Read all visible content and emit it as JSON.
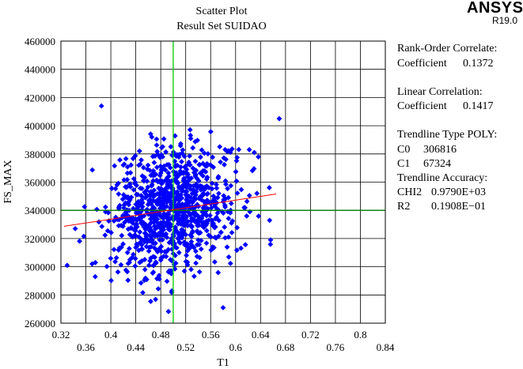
{
  "logo": {
    "name": "ANSYS",
    "version": "R19.0"
  },
  "stats": {
    "rank_title": "Rank-Order Correlate:",
    "rank_label": "Coefficient",
    "rank_value": "0.1372",
    "linear_title": "Linear Correlation:",
    "linear_label": "Coefficient",
    "linear_value": "0.1417",
    "trend_title": "Trendline Type POLY:",
    "c0_label": "C0",
    "c0_value": "306816",
    "c1_label": "C1",
    "c1_value": "67324",
    "accuracy_title": "Trendline Accuracy:",
    "chi2_label": "CHI2",
    "chi2_value": "0.9790E+03",
    "r2_label": "R2",
    "r2_value": "0.1908E−01"
  },
  "chart_data": {
    "type": "scatter",
    "title": "Scatter Plot",
    "subtitle": "Result Set SUIDAO",
    "xlabel": "T1",
    "ylabel": "FS_MAX",
    "xlim": [
      0.32,
      0.84
    ],
    "ylim": [
      260000,
      460000
    ],
    "x_ticks_upper": [
      "0.32",
      "0.4",
      "0.48",
      "0.56",
      "0.64",
      "0.72",
      "0.8"
    ],
    "x_ticks_lower": [
      "0.36",
      "0.44",
      "0.52",
      "0.6",
      "0.68",
      "0.76",
      "0.84"
    ],
    "y_ticks": [
      "260000",
      "280000",
      "300000",
      "320000",
      "340000",
      "360000",
      "380000",
      "400000",
      "420000",
      "440000",
      "460000"
    ],
    "grid": true,
    "marker_color": "#0000ff",
    "mean_lines": {
      "x": 0.5,
      "y": 340000,
      "x_color": "#00cc00",
      "y_color": "#008000"
    },
    "trendline": {
      "color": "#ff0000",
      "x_range": [
        0.325,
        0.665
      ],
      "c0": 306816,
      "c1": 67324
    },
    "series": [
      {
        "cluster": {
          "n": 1000,
          "x_mean": 0.5,
          "x_sd": 0.05,
          "y_mean": 340000,
          "y_sd": 22000,
          "seed": 7
        },
        "points": [
          [
            0.33,
            301000
          ],
          [
            0.343,
            327000
          ],
          [
            0.385,
            414000
          ],
          [
            0.67,
            405000
          ],
          [
            0.622,
            383000
          ],
          [
            0.63,
            381000
          ],
          [
            0.58,
            271000
          ],
          [
            0.37,
            302000
          ],
          [
            0.375,
            293000
          ]
        ]
      }
    ]
  }
}
